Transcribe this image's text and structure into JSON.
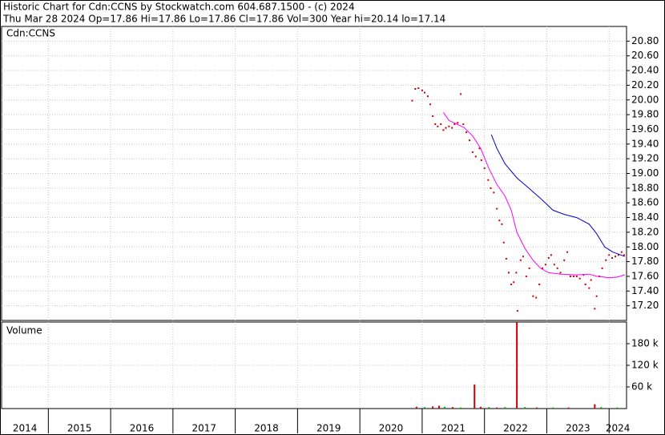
{
  "chart_data": [
    {
      "type": "scatter",
      "title": "Historic Chart for Cdn:CCNS by Stockwatch.com 604.687.1500 - (c) 2024",
      "subtitle": "Thu Mar 28 2024  Op=17.86  Hi=17.86  Lo=17.86  Cl=17.86  Vol=300  Year hi=20.14  lo=17.14",
      "label": "Cdn:CCNS",
      "grid": true,
      "xlim": [
        2014.25,
        2024.28
      ],
      "xticks": [
        {
          "value": 2014,
          "label": "2014"
        },
        {
          "value": 2015,
          "label": "2015"
        },
        {
          "value": 2016,
          "label": "2016"
        },
        {
          "value": 2017,
          "label": "2017"
        },
        {
          "value": 2018,
          "label": "2018"
        },
        {
          "value": 2019,
          "label": "2019"
        },
        {
          "value": 2020,
          "label": "2020"
        },
        {
          "value": 2021,
          "label": "2021"
        },
        {
          "value": 2022,
          "label": "2022"
        },
        {
          "value": 2023,
          "label": "2023"
        },
        {
          "value": 2024,
          "label": "2024"
        }
      ],
      "ylim": [
        17.0,
        21.0
      ],
      "yticks": [
        {
          "value": 17.2,
          "label": "17.20"
        },
        {
          "value": 17.4,
          "label": "17.40"
        },
        {
          "value": 17.6,
          "label": "17.60"
        },
        {
          "value": 17.8,
          "label": "17.80"
        },
        {
          "value": 18,
          "label": "18.00"
        },
        {
          "value": 18.2,
          "label": "18.20"
        },
        {
          "value": 18.4,
          "label": "18.40"
        },
        {
          "value": 18.6,
          "label": "18.60"
        },
        {
          "value": 18.8,
          "label": "18.80"
        },
        {
          "value": 19,
          "label": "19.00"
        },
        {
          "value": 19.2,
          "label": "19.20"
        },
        {
          "value": 19.4,
          "label": "19.40"
        },
        {
          "value": 19.6,
          "label": "19.60"
        },
        {
          "value": 19.8,
          "label": "19.80"
        },
        {
          "value": 20,
          "label": "20.00"
        },
        {
          "value": 20.2,
          "label": "20.20"
        },
        {
          "value": 20.4,
          "label": "20.40"
        },
        {
          "value": 20.6,
          "label": "20.60"
        },
        {
          "value": 20.8,
          "label": "20.80"
        }
      ],
      "series": [
        {
          "style": "dots",
          "color": "#cc0000",
          "x": [
            2020.84,
            2020.89,
            2020.94,
            2021.0,
            2021.04,
            2021.09,
            2021.13,
            2021.17,
            2021.21,
            2021.25,
            2021.3,
            2021.34,
            2021.38,
            2021.43,
            2021.48,
            2021.52,
            2021.57,
            2021.62,
            2021.66,
            2021.71,
            2021.76,
            2021.81,
            2021.86,
            2021.92,
            2021.95,
            2022.0,
            2022.06,
            2022.1,
            2022.15,
            2022.2,
            2022.24,
            2022.28,
            2022.31,
            2022.35,
            2022.39,
            2022.43,
            2022.47,
            2022.51,
            2022.53,
            2022.58,
            2022.62,
            2022.67,
            2022.72,
            2022.78,
            2022.83,
            2022.88,
            2022.93,
            2022.98,
            2023.03,
            2023.07,
            2023.12,
            2023.17,
            2023.22,
            2023.28,
            2023.33,
            2023.38,
            2023.43,
            2023.48,
            2023.53,
            2023.59,
            2023.62,
            2023.68,
            2023.71,
            2023.77,
            2023.8,
            2023.84,
            2023.89,
            2023.95,
            2024.0,
            2024.05,
            2024.1,
            2024.15,
            2024.2,
            2024.24
          ],
          "values": [
            19.99,
            20.15,
            20.16,
            20.13,
            20.1,
            20.05,
            19.94,
            19.78,
            19.67,
            19.64,
            19.67,
            19.59,
            19.62,
            19.64,
            19.62,
            19.67,
            19.69,
            20.08,
            19.67,
            19.56,
            19.45,
            19.29,
            19.23,
            19.34,
            19.18,
            19.07,
            18.91,
            18.8,
            18.74,
            18.52,
            18.36,
            18.31,
            18.06,
            17.84,
            17.65,
            17.49,
            17.52,
            17.65,
            17.13,
            17.82,
            17.87,
            17.6,
            17.71,
            17.33,
            17.31,
            17.49,
            17.71,
            17.76,
            17.85,
            17.89,
            17.76,
            17.71,
            17.65,
            17.82,
            17.93,
            17.6,
            17.6,
            17.6,
            17.57,
            17.62,
            17.49,
            17.44,
            17.55,
            17.16,
            17.33,
            17.6,
            17.71,
            17.82,
            17.89,
            17.85,
            17.87,
            17.89,
            17.93,
            17.89
          ]
        },
        {
          "style": "line",
          "color": "#ff00ff",
          "x": [
            2021.34,
            2021.43,
            2021.56,
            2021.68,
            2021.81,
            2021.94,
            2022.07,
            2022.2,
            2022.33,
            2022.43,
            2022.52,
            2022.65,
            2022.78,
            2022.9,
            2023.03,
            2023.23,
            2023.48,
            2023.68,
            2023.8,
            2024.0,
            2024.13,
            2024.25
          ],
          "values": [
            19.83,
            19.72,
            19.67,
            19.62,
            19.51,
            19.34,
            19.07,
            18.85,
            18.69,
            18.5,
            18.2,
            17.98,
            17.82,
            17.71,
            17.65,
            17.63,
            17.62,
            17.63,
            17.6,
            17.58,
            17.59,
            17.62
          ]
        },
        {
          "style": "line",
          "color": "#0000cc",
          "x": [
            2022.11,
            2022.2,
            2022.33,
            2022.52,
            2022.71,
            2022.9,
            2023.1,
            2023.29,
            2023.48,
            2023.68,
            2023.8,
            2023.93,
            2024.06,
            2024.19,
            2024.25
          ],
          "values": [
            19.53,
            19.34,
            19.13,
            18.94,
            18.8,
            18.66,
            18.5,
            18.44,
            18.4,
            18.31,
            18.18,
            18.0,
            17.93,
            17.89,
            17.87
          ]
        }
      ]
    },
    {
      "type": "bar",
      "label": "Volume",
      "grid": true,
      "ylim": [
        0,
        240000
      ],
      "yticks": [
        {
          "value": 60000,
          "label": "60 k"
        },
        {
          "value": 120000,
          "label": "120 k"
        },
        {
          "value": 180000,
          "label": "180 k"
        }
      ],
      "x": [
        2020.91,
        2021.04,
        2021.17,
        2021.27,
        2021.36,
        2021.49,
        2021.62,
        2021.84,
        2021.94,
        2022.07,
        2022.2,
        2022.33,
        2022.52,
        2022.65,
        2022.84,
        2023.1,
        2023.35,
        2023.77,
        2023.87,
        2024.13
      ],
      "values": [
        5000,
        4000,
        6000,
        8000,
        5000,
        4000,
        3000,
        67000,
        5000,
        4000,
        3000,
        4000,
        240000,
        4000,
        3000,
        3000,
        3000,
        12000,
        4000,
        3000
      ],
      "colors": [
        "#cc0000",
        "#00aa00",
        "#cc0000",
        "#cc0000",
        "#00aa00",
        "#cc0000",
        "#00aa00",
        "#cc0000",
        "#cc0000",
        "#00aa00",
        "#cc0000",
        "#00aa00",
        "#cc0000",
        "#00aa00",
        "#cc0000",
        "#00aa00",
        "#cc0000",
        "#cc0000",
        "#00aa00",
        "#00aa00"
      ]
    }
  ]
}
